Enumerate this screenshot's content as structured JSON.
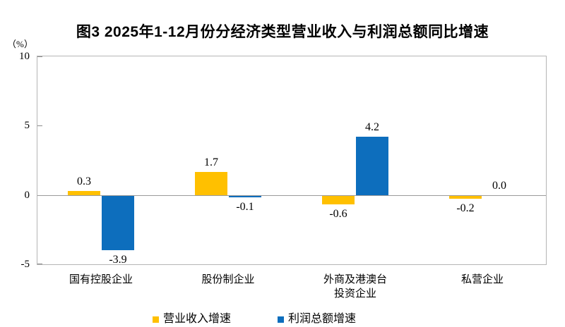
{
  "chart_data": {
    "type": "bar",
    "title": "图3 2025年1-12月份分经济类型营业收入与利润总额同比增速",
    "ylabel": "（%）",
    "unit": "%",
    "categories": [
      "国有控股企业",
      "股份制企业",
      "外商及港澳台\n投资企业",
      "私营企业"
    ],
    "series": [
      {
        "name": "营业收入增速",
        "color": "#FFC000",
        "values": [
          0.3,
          1.7,
          -0.6,
          -0.2
        ]
      },
      {
        "name": "利润总额增速",
        "color": "#0D6EBD",
        "values": [
          -3.9,
          -0.1,
          4.2,
          0.0
        ]
      }
    ],
    "ylim": [
      -5,
      10
    ],
    "yticks": [
      10,
      5,
      0,
      -5
    ],
    "value_label_decimals": 1,
    "grid": false,
    "legend_position": "bottom",
    "colors": {
      "revenue_series": "#FFC000",
      "profit_series": "#0D6EBD",
      "plot_border": "#b5b5b5",
      "zero_line": "#9b9b9b",
      "text": "#000000"
    }
  }
}
